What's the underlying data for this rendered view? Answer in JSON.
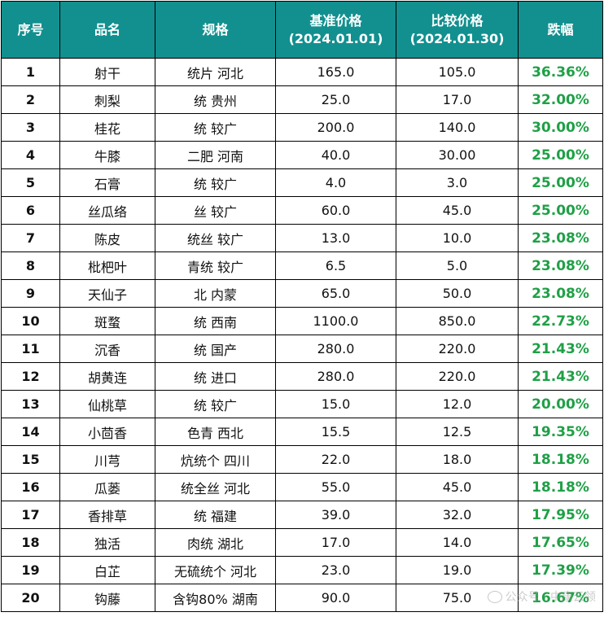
{
  "headers": {
    "no": "序号",
    "name": "品名",
    "spec": "规格",
    "base_line1": "基准价格",
    "base_line2": "(2024.01.01)",
    "cmp_line1": "比较价格",
    "cmp_line2": "(2024.01.30)",
    "drop": "跌幅"
  },
  "rows": [
    {
      "no": "1",
      "name": "射干",
      "spec": "统片 河北",
      "base": "165.0",
      "cmp": "105.0",
      "drop": "36.36%"
    },
    {
      "no": "2",
      "name": "刺梨",
      "spec": "统 贵州",
      "base": "25.0",
      "cmp": "17.0",
      "drop": "32.00%"
    },
    {
      "no": "3",
      "name": "桂花",
      "spec": "统 较广",
      "base": "200.0",
      "cmp": "140.0",
      "drop": "30.00%"
    },
    {
      "no": "4",
      "name": "牛膝",
      "spec": "二肥 河南",
      "base": "40.0",
      "cmp": "30.00",
      "drop": "25.00%"
    },
    {
      "no": "5",
      "name": "石膏",
      "spec": "统 较广",
      "base": "4.0",
      "cmp": "3.0",
      "drop": "25.00%"
    },
    {
      "no": "6",
      "name": "丝瓜络",
      "spec": "丝 较广",
      "base": "60.0",
      "cmp": "45.0",
      "drop": "25.00%"
    },
    {
      "no": "7",
      "name": "陈皮",
      "spec": "统丝 较广",
      "base": "13.0",
      "cmp": "10.0",
      "drop": "23.08%"
    },
    {
      "no": "8",
      "name": "枇杷叶",
      "spec": "青统 较广",
      "base": "6.5",
      "cmp": "5.0",
      "drop": "23.08%"
    },
    {
      "no": "9",
      "name": "天仙子",
      "spec": "北 内蒙",
      "base": "65.0",
      "cmp": "50.0",
      "drop": "23.08%"
    },
    {
      "no": "10",
      "name": "斑蝥",
      "spec": "统 西南",
      "base": "1100.0",
      "cmp": "850.0",
      "drop": "22.73%"
    },
    {
      "no": "11",
      "name": "沉香",
      "spec": "统 国产",
      "base": "280.0",
      "cmp": "220.0",
      "drop": "21.43%"
    },
    {
      "no": "12",
      "name": "胡黄连",
      "spec": "统 进口",
      "base": "280.0",
      "cmp": "220.0",
      "drop": "21.43%"
    },
    {
      "no": "13",
      "name": "仙桃草",
      "spec": "统 较广",
      "base": "15.0",
      "cmp": "12.0",
      "drop": "20.00%"
    },
    {
      "no": "14",
      "name": "小茴香",
      "spec": "色青 西北",
      "base": "15.5",
      "cmp": "12.5",
      "drop": "19.35%"
    },
    {
      "no": "15",
      "name": "川芎",
      "spec": "炕统个 四川",
      "base": "22.0",
      "cmp": "18.0",
      "drop": "18.18%"
    },
    {
      "no": "16",
      "name": "瓜蒌",
      "spec": "统全丝 河北",
      "base": "55.0",
      "cmp": "45.0",
      "drop": "18.18%"
    },
    {
      "no": "17",
      "name": "香排草",
      "spec": "统 福建",
      "base": "39.0",
      "cmp": "32.0",
      "drop": "17.95%"
    },
    {
      "no": "18",
      "name": "独活",
      "spec": "肉统 湖北",
      "base": "17.0",
      "cmp": "14.0",
      "drop": "17.65%"
    },
    {
      "no": "19",
      "name": "白芷",
      "spec": "无硫统个 河北",
      "base": "23.0",
      "cmp": "19.0",
      "drop": "17.39%"
    },
    {
      "no": "20",
      "name": "钩藤",
      "spec": "含钩80% 湖南",
      "base": "90.0",
      "cmp": "75.0",
      "drop": "16.67%"
    }
  ],
  "watermark": "公众号 · 中康云领"
}
